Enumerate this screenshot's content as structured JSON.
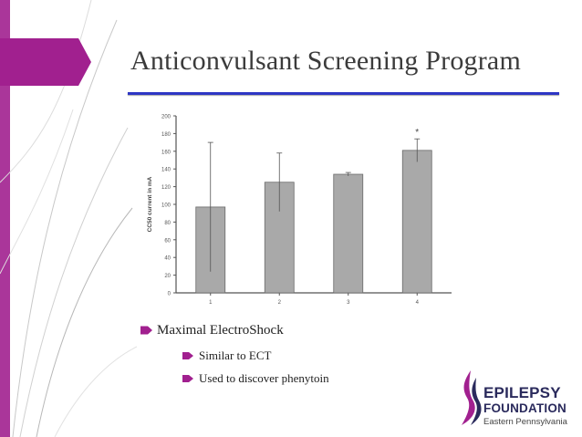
{
  "slide": {
    "title": "Anticonvulsant Screening Program",
    "bullets": {
      "main": "Maximal ElectroShock",
      "sub": [
        "Similar to ECT",
        "Used to discover phenytoin"
      ]
    }
  },
  "logo": {
    "line1": "EPILEPSY",
    "line2": "FOUNDATION",
    "line3": "Eastern Pennsylvania"
  },
  "colors": {
    "accent_purple": "#a1208f",
    "title_rule": "#2d36c4",
    "bar_fill": "#a9a9a9"
  },
  "chart_data": {
    "type": "bar",
    "categories": [
      "1",
      "2",
      "3",
      "4"
    ],
    "values": [
      97,
      125,
      134,
      161
    ],
    "error": [
      73,
      33,
      2,
      13
    ],
    "annotations": [
      {
        "category": "4",
        "text": "*"
      }
    ],
    "ylabel": "CC50 current in mA",
    "xlabel": "",
    "ylim": [
      0,
      200
    ],
    "yticks": [
      0,
      20,
      40,
      60,
      80,
      100,
      120,
      140,
      160,
      180,
      200
    ],
    "grid": false
  }
}
